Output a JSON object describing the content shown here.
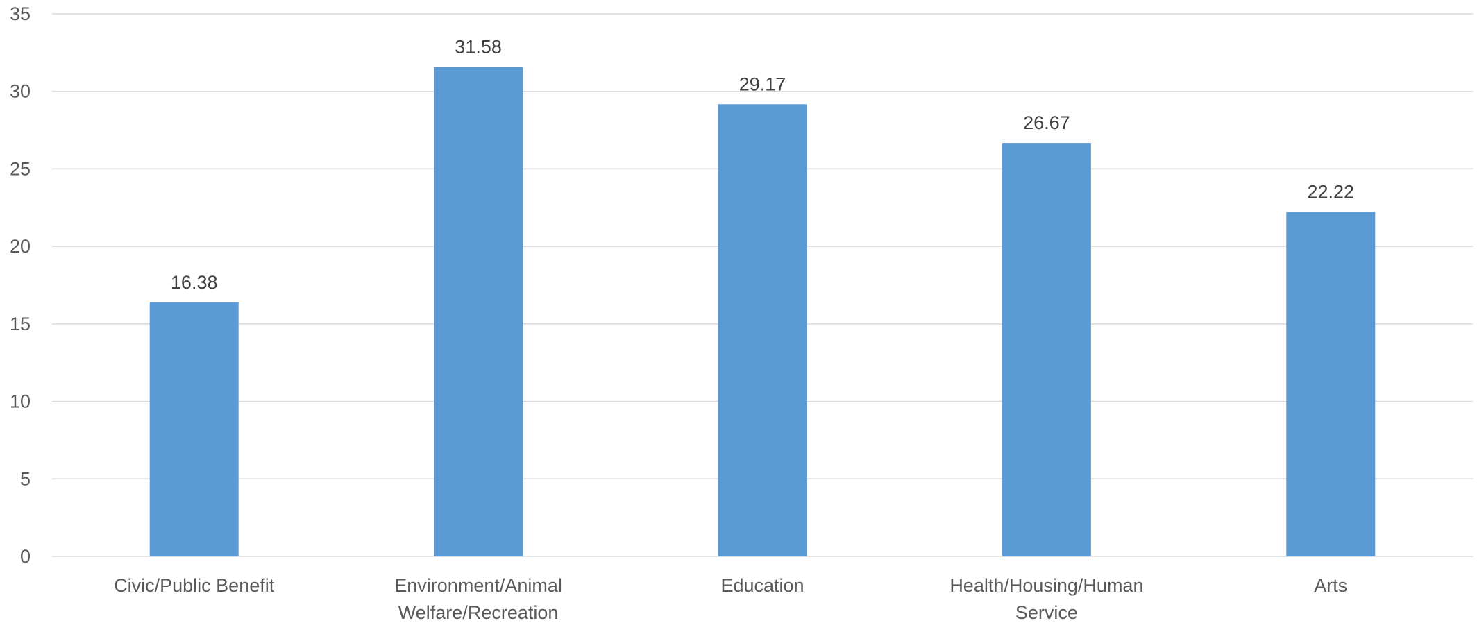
{
  "chart_data": {
    "type": "bar",
    "title": "",
    "xlabel": "",
    "ylabel": "",
    "categories": [
      [
        "Civic/Public Benefit"
      ],
      [
        "Environment/Animal",
        "Welfare/Recreation"
      ],
      [
        "Education"
      ],
      [
        "Health/Housing/Human",
        "Service"
      ],
      [
        "Arts"
      ]
    ],
    "values": [
      16.38,
      31.58,
      29.17,
      26.67,
      22.22
    ],
    "value_labels": [
      "16.38",
      "31.58",
      "29.17",
      "26.67",
      "22.22"
    ],
    "ylim": [
      0,
      35
    ],
    "yticks": [
      0,
      5,
      10,
      15,
      20,
      25,
      30,
      35
    ],
    "grid": true,
    "legend": "none",
    "bar_color": "#5b9bd5"
  }
}
